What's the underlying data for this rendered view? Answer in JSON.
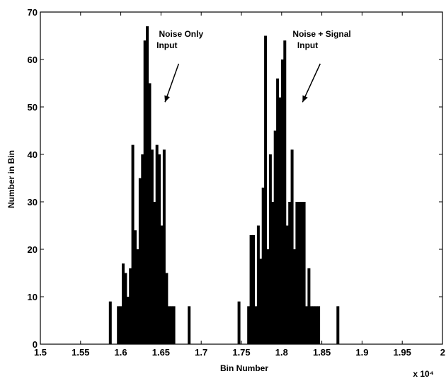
{
  "chart_data": {
    "type": "bar",
    "title": "",
    "xlabel": "Bin Number",
    "ylabel": "Number in Bin",
    "x_multiplier_label": "x 10⁴",
    "xlim": [
      1.5,
      2.0
    ],
    "ylim": [
      0,
      70
    ],
    "x_ticks": [
      1.5,
      1.55,
      1.6,
      1.65,
      1.7,
      1.75,
      1.8,
      1.85,
      1.9,
      1.95,
      2
    ],
    "x_tick_labels": [
      "1.5",
      "1.55",
      "1.6",
      "1.65",
      "1.7",
      "1.75",
      "1.8",
      "1.85",
      "1.9",
      "1.95",
      "2"
    ],
    "y_ticks": [
      0,
      10,
      20,
      30,
      40,
      50,
      60,
      70
    ],
    "y_tick_labels": [
      "0",
      "10",
      "20",
      "30",
      "40",
      "50",
      "60",
      "70"
    ],
    "grid": false,
    "bar_color": "#000000",
    "series": [
      {
        "x": [
          1.587,
          1.597,
          1.6,
          1.603,
          1.606,
          1.609,
          1.612,
          1.615,
          1.618,
          1.621,
          1.624,
          1.627,
          1.63,
          1.633,
          1.636,
          1.639,
          1.642,
          1.645,
          1.648,
          1.651,
          1.654,
          1.657,
          1.66,
          1.663,
          1.666,
          1.685
        ],
        "values": [
          9,
          8,
          8,
          17,
          15,
          10,
          16,
          42,
          24,
          20,
          35,
          40,
          64,
          67,
          55,
          41,
          30,
          42,
          40,
          25,
          41,
          15,
          8,
          8,
          8,
          8
        ]
      },
      {
        "x": [
          1.747,
          1.759,
          1.762,
          1.765,
          1.768,
          1.771,
          1.774,
          1.777,
          1.78,
          1.783,
          1.786,
          1.789,
          1.792,
          1.795,
          1.798,
          1.801,
          1.804,
          1.807,
          1.81,
          1.813,
          1.816,
          1.819,
          1.822,
          1.825,
          1.828,
          1.831,
          1.834,
          1.837,
          1.84,
          1.843,
          1.846,
          1.87
        ],
        "values": [
          9,
          8,
          23,
          23,
          8,
          25,
          18,
          33,
          65,
          20,
          40,
          30,
          45,
          56,
          52,
          60,
          64,
          25,
          30,
          41,
          20,
          30,
          30,
          30,
          30,
          8,
          16,
          8,
          8,
          8,
          8,
          8
        ]
      }
    ],
    "annotations": [
      {
        "line1": "Noise Only",
        "line2": "Input",
        "text_anchor_x": 1.675,
        "arrow_from": [
          1.672,
          60
        ],
        "arrow_to": [
          1.655,
          51
        ]
      },
      {
        "line1": "Noise + Signal",
        "line2": "Input",
        "text_anchor_x": 1.85,
        "arrow_from": [
          1.848,
          60
        ],
        "arrow_to": [
          1.826,
          51
        ]
      }
    ]
  }
}
